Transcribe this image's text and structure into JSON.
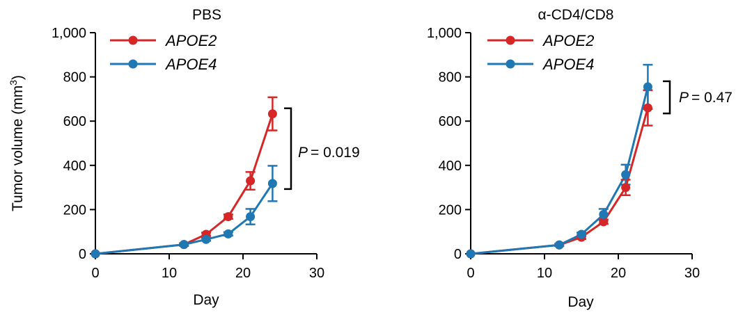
{
  "chart_data": [
    {
      "type": "line",
      "title": "PBS",
      "xlabel": "Day",
      "ylabel": "Tumor volume (mm",
      "ylabel_sup": "3",
      "ylabel_suffix": ")",
      "xlim": [
        0,
        30
      ],
      "ylim": [
        0,
        1000
      ],
      "xticks": [
        0,
        10,
        20,
        30
      ],
      "yticks": [
        0,
        200,
        400,
        600,
        800,
        1000
      ],
      "ytick_labels": [
        "0",
        "200",
        "400",
        "600",
        "800",
        "1,000"
      ],
      "legend_position": "top-left",
      "grid": false,
      "series": [
        {
          "name": "APOE2",
          "color": "#d62728",
          "x": [
            0,
            12,
            15,
            18,
            21,
            24
          ],
          "y": [
            0,
            42,
            88,
            168,
            330,
            633
          ],
          "err": [
            0,
            6,
            8,
            10,
            40,
            75
          ]
        },
        {
          "name": "APOE4",
          "color": "#1f77b4",
          "x": [
            0,
            12,
            15,
            18,
            21,
            24
          ],
          "y": [
            0,
            42,
            65,
            90,
            168,
            318
          ],
          "err": [
            0,
            6,
            6,
            8,
            35,
            80
          ]
        }
      ],
      "annotation": {
        "p_label": "P",
        "p_value": "= 0.019",
        "bracket_y": [
          318,
          633
        ]
      }
    },
    {
      "type": "line",
      "title": "α-CD4/CD8",
      "xlabel": "Day",
      "xlim": [
        0,
        30
      ],
      "ylim": [
        0,
        1000
      ],
      "xticks": [
        0,
        10,
        20,
        30
      ],
      "yticks": [
        0,
        200,
        400,
        600,
        800,
        1000
      ],
      "ytick_labels": [
        "0",
        "200",
        "400",
        "600",
        "800",
        "1,000"
      ],
      "legend_position": "top-left",
      "grid": false,
      "series": [
        {
          "name": "APOE2",
          "color": "#d62728",
          "x": [
            0,
            12,
            15,
            18,
            21,
            24
          ],
          "y": [
            0,
            40,
            75,
            145,
            300,
            660
          ],
          "err": [
            0,
            5,
            8,
            10,
            35,
            80
          ]
        },
        {
          "name": "APOE4",
          "color": "#1f77b4",
          "x": [
            0,
            12,
            15,
            18,
            21,
            24
          ],
          "y": [
            0,
            40,
            88,
            178,
            358,
            755
          ],
          "err": [
            0,
            5,
            8,
            25,
            45,
            100
          ]
        }
      ],
      "annotation": {
        "p_label": "P",
        "p_value": "= 0.47",
        "bracket_y": [
          660,
          755
        ]
      }
    }
  ]
}
